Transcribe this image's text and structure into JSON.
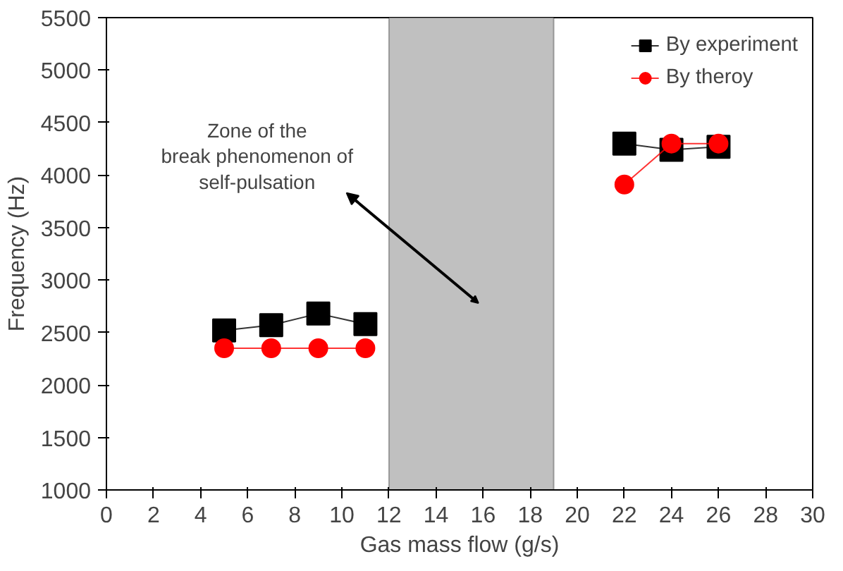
{
  "chart_data": {
    "type": "line",
    "xlabel": "Gas mass flow (g/s)",
    "ylabel": "Frequency (Hz)",
    "xlim": [
      0,
      30
    ],
    "xticks": [
      0,
      2,
      4,
      6,
      8,
      10,
      12,
      14,
      16,
      18,
      20,
      22,
      24,
      26,
      28,
      30
    ],
    "ylim": [
      1000,
      5500
    ],
    "yticks": [
      1000,
      1500,
      2000,
      2500,
      3000,
      3500,
      4000,
      4500,
      5000,
      5500
    ],
    "x": [
      5,
      7,
      9,
      11,
      null,
      22,
      24,
      26
    ],
    "series": [
      {
        "name": "By experiment",
        "color": "#000000",
        "marker": "square",
        "values": [
          2520,
          2570,
          2680,
          2580,
          null,
          4300,
          4240,
          4270
        ]
      },
      {
        "name": "By theroy",
        "color": "#ff0000",
        "marker": "circle",
        "values": [
          2350,
          2350,
          2350,
          2350,
          null,
          3910,
          4300,
          4300
        ]
      }
    ],
    "bands": [
      {
        "axis": "x",
        "from": 12,
        "to": 19,
        "color": "#c0c0c0"
      }
    ],
    "annotations": [
      "Zone of the break phenomenon of self-pulsation"
    ],
    "legend": "top right",
    "grid": false
  }
}
